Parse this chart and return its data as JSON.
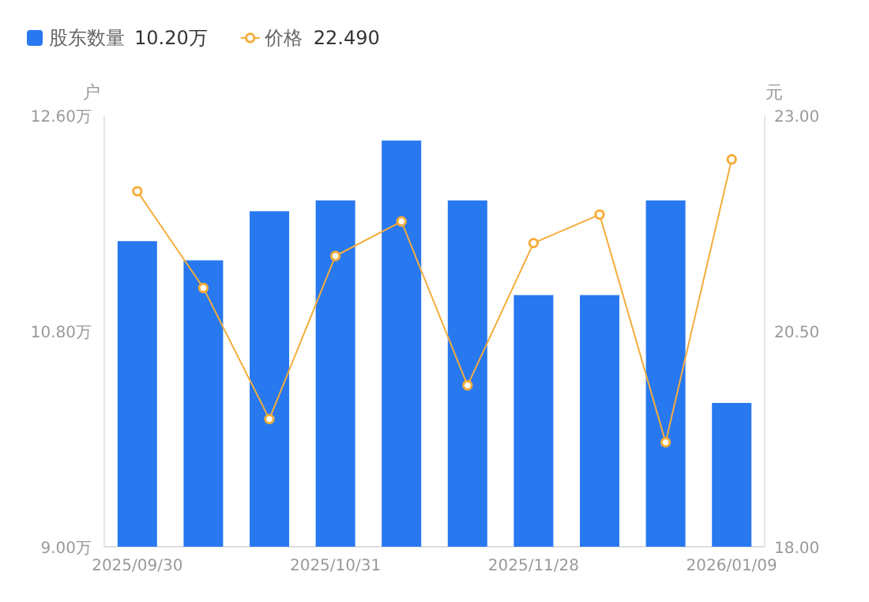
{
  "chart_data": {
    "type": "bar",
    "categories": [
      "2025/09/30",
      null,
      null,
      "2025/10/31",
      null,
      null,
      "2025/11/28",
      null,
      null,
      "2026/01/09"
    ],
    "series": [
      {
        "name": "股东数量",
        "color": "#2878f0",
        "values": [
          11.55,
          11.39,
          11.8,
          11.89,
          12.39,
          11.89,
          11.1,
          11.1,
          11.89,
          10.2
        ]
      },
      {
        "name": "价格",
        "type": "line",
        "axis": "y2",
        "color": "#f5ad3b",
        "values": [
          22.12,
          21.0,
          19.48,
          21.37,
          21.77,
          19.87,
          21.52,
          21.85,
          19.21,
          22.49
        ]
      }
    ],
    "ylabel": "户",
    "y2label": "元",
    "ylim": [
      9,
      12.6
    ],
    "yticks": [
      {
        "value": 9,
        "label": "9.00万"
      },
      {
        "value": 10.8,
        "label": "10.80万"
      },
      {
        "value": 12.6,
        "label": "12.60万"
      }
    ],
    "y2lim": [
      18,
      23
    ],
    "y2ticks": [
      {
        "value": 18,
        "label": "18.00"
      },
      {
        "value": 20.5,
        "label": "20.50"
      },
      {
        "value": 23,
        "label": "23.00"
      }
    ],
    "legend": "top left",
    "marker": "circle",
    "annotations": [
      "10.20万",
      "22.490"
    ]
  }
}
